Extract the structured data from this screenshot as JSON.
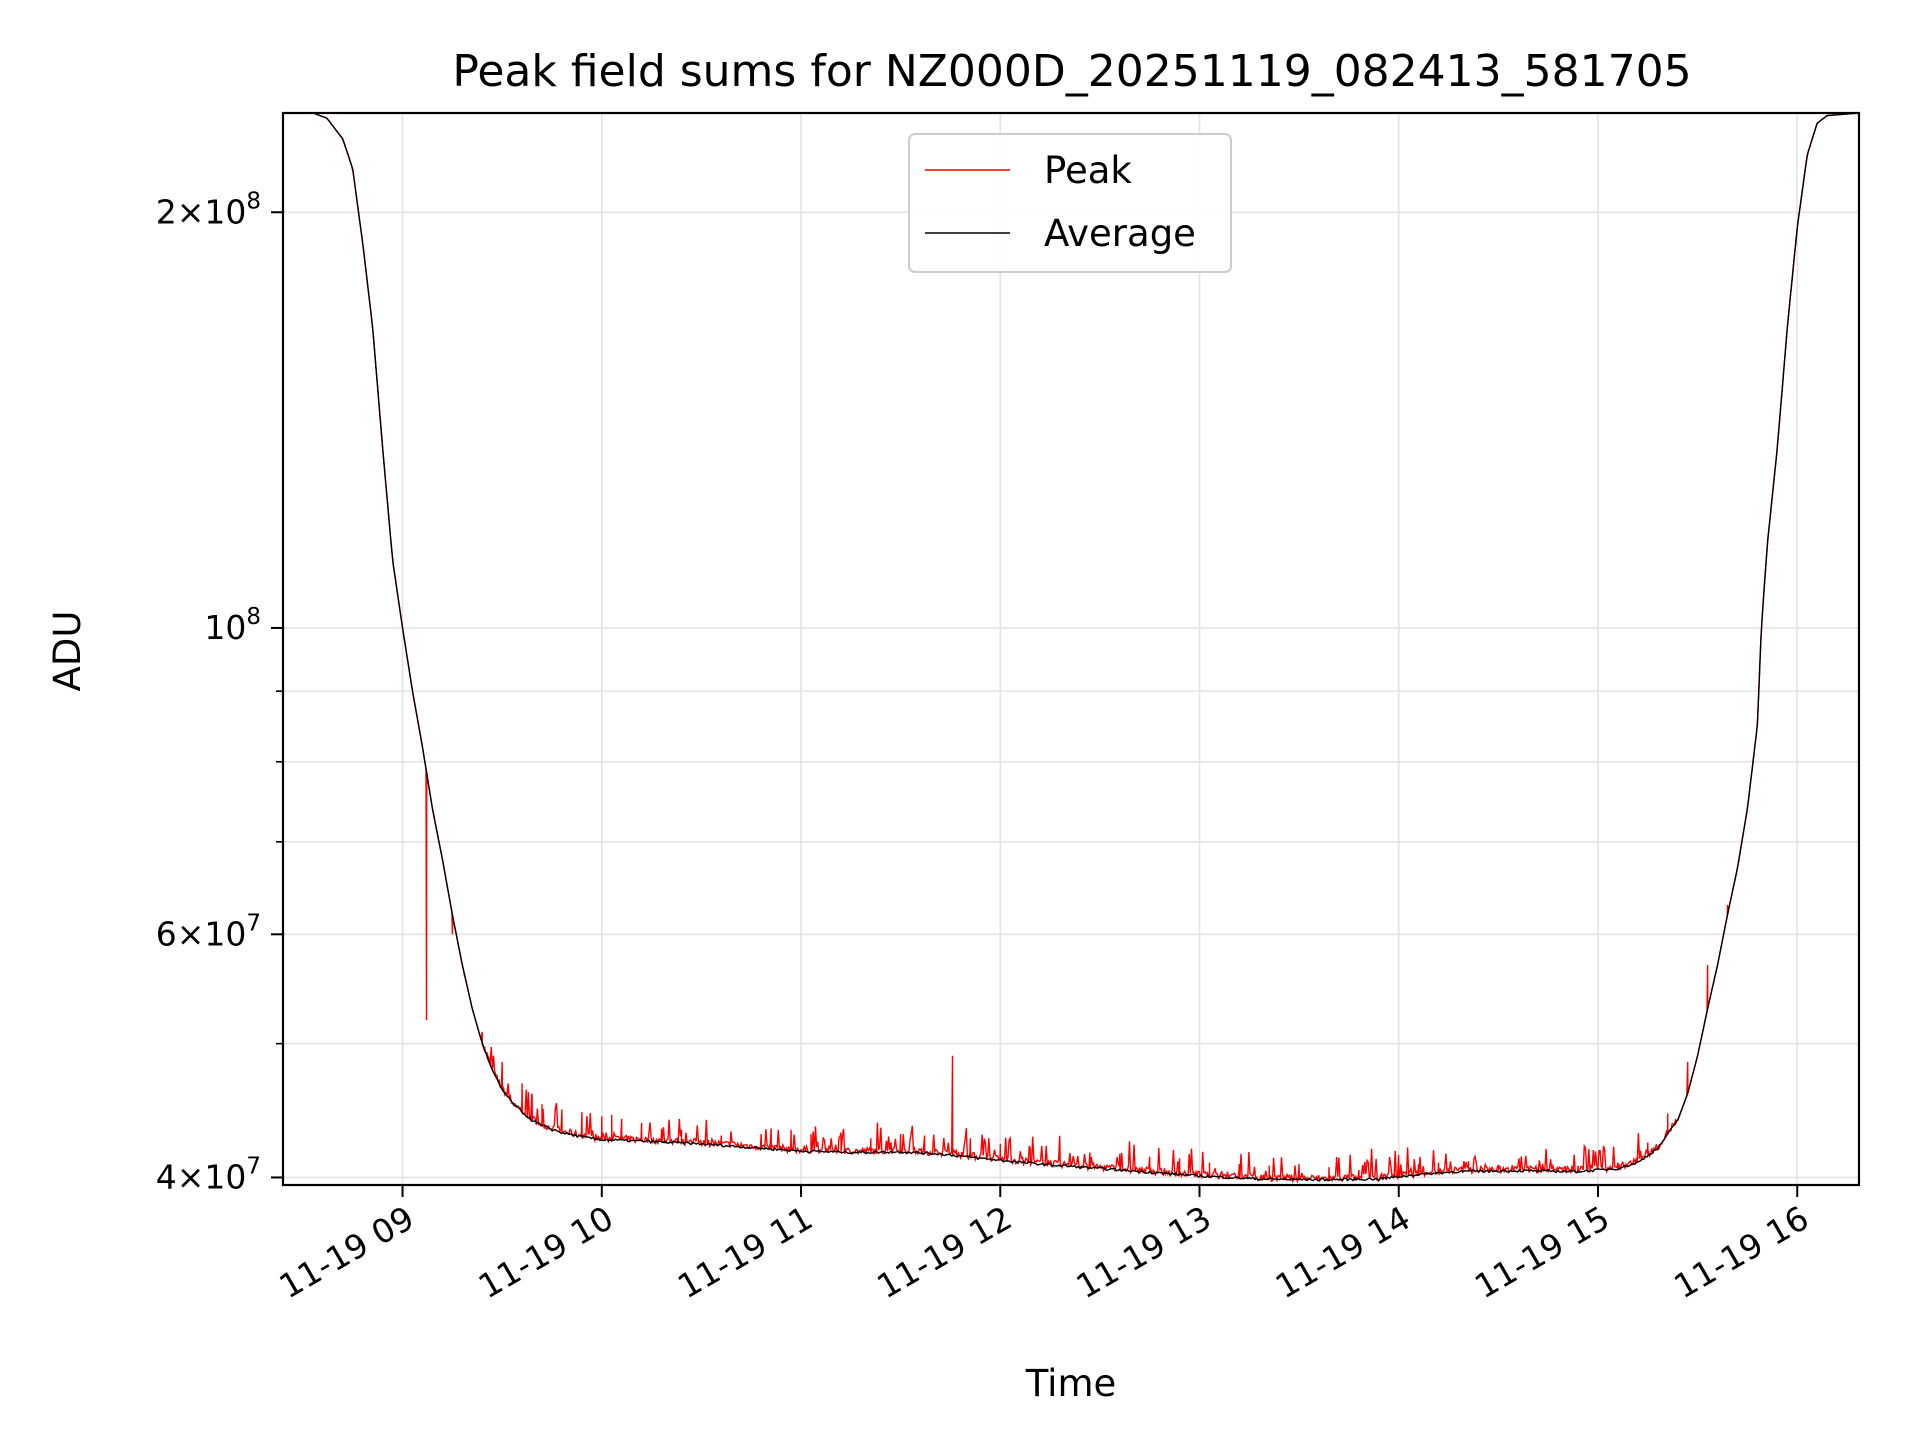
{
  "chart_data": {
    "type": "line",
    "title": "Peak field sums for NZ000D_20251119_082413_581705",
    "xlabel": "Time",
    "ylabel": "ADU",
    "y_scale": "log",
    "ylim": [
      39500000,
      236000000
    ],
    "xlim_hours": [
      8.4,
      16.31
    ],
    "grid": true,
    "legend_position": "upper center",
    "x_ticks": [
      {
        "value": 9,
        "label": "11-19 09"
      },
      {
        "value": 10,
        "label": "11-19 10"
      },
      {
        "value": 11,
        "label": "11-19 11"
      },
      {
        "value": 12,
        "label": "11-19 12"
      },
      {
        "value": 13,
        "label": "11-19 13"
      },
      {
        "value": 14,
        "label": "11-19 14"
      },
      {
        "value": 15,
        "label": "11-19 15"
      },
      {
        "value": 16,
        "label": "11-19 16"
      }
    ],
    "y_ticks": [
      {
        "value": 40000000,
        "base": "4",
        "exp": "7"
      },
      {
        "value": 60000000,
        "base": "6",
        "exp": "7"
      },
      {
        "value": 100000000,
        "base": "",
        "exp": "8"
      },
      {
        "value": 200000000,
        "base": "2",
        "exp": "8"
      }
    ],
    "y_minor_ticks": [
      50000000,
      70000000,
      80000000,
      90000000
    ],
    "series": [
      {
        "name": "Average",
        "color": "#000000",
        "points": [
          [
            8.4,
            236000000
          ],
          [
            8.55,
            236000000
          ],
          [
            8.62,
            234000000
          ],
          [
            8.7,
            226000000
          ],
          [
            8.75,
            215000000
          ],
          [
            8.8,
            190000000
          ],
          [
            8.85,
            165000000
          ],
          [
            8.9,
            135000000
          ],
          [
            8.95,
            112000000
          ],
          [
            9.0,
            100000000
          ],
          [
            9.05,
            90000000
          ],
          [
            9.1,
            82000000
          ],
          [
            9.15,
            74000000
          ],
          [
            9.2,
            68000000
          ],
          [
            9.25,
            62000000
          ],
          [
            9.3,
            57000000
          ],
          [
            9.35,
            53000000
          ],
          [
            9.4,
            50000000
          ],
          [
            9.45,
            47800000
          ],
          [
            9.5,
            46300000
          ],
          [
            9.55,
            45300000
          ],
          [
            9.6,
            44600000
          ],
          [
            9.65,
            44000000
          ],
          [
            9.7,
            43600000
          ],
          [
            9.8,
            43100000
          ],
          [
            9.9,
            42800000
          ],
          [
            10.0,
            42600000
          ],
          [
            10.2,
            42500000
          ],
          [
            10.5,
            42300000
          ],
          [
            10.8,
            42000000
          ],
          [
            11.0,
            41800000
          ],
          [
            11.3,
            41700000
          ],
          [
            11.5,
            41750000
          ],
          [
            11.7,
            41600000
          ],
          [
            11.9,
            41300000
          ],
          [
            12.2,
            40900000
          ],
          [
            12.5,
            40600000
          ],
          [
            12.8,
            40300000
          ],
          [
            13.0,
            40100000
          ],
          [
            13.3,
            39900000
          ],
          [
            13.6,
            39850000
          ],
          [
            13.9,
            39900000
          ],
          [
            14.1,
            40200000
          ],
          [
            14.3,
            40400000
          ],
          [
            14.6,
            40450000
          ],
          [
            14.9,
            40400000
          ],
          [
            15.1,
            40600000
          ],
          [
            15.2,
            41000000
          ],
          [
            15.3,
            42000000
          ],
          [
            15.4,
            44000000
          ],
          [
            15.45,
            46000000
          ],
          [
            15.5,
            49000000
          ],
          [
            15.55,
            53000000
          ],
          [
            15.6,
            57000000
          ],
          [
            15.65,
            62000000
          ],
          [
            15.7,
            67000000
          ],
          [
            15.75,
            74000000
          ],
          [
            15.8,
            85000000
          ],
          [
            15.82,
            100000000
          ],
          [
            15.85,
            115000000
          ],
          [
            15.9,
            135000000
          ],
          [
            15.95,
            165000000
          ],
          [
            16.0,
            195000000
          ],
          [
            16.05,
            220000000
          ],
          [
            16.1,
            232000000
          ],
          [
            16.15,
            235000000
          ],
          [
            16.31,
            236000000
          ]
        ]
      },
      {
        "name": "Peak",
        "color": "#ff0000",
        "spikes": [
          [
            9.12,
            52000000
          ],
          [
            9.25,
            60000000
          ],
          [
            9.31,
            56000000
          ],
          [
            9.4,
            51000000
          ],
          [
            9.5,
            48500000
          ],
          [
            9.6,
            46800000
          ],
          [
            9.65,
            45800000
          ],
          [
            9.7,
            45200000
          ],
          [
            9.8,
            44800000
          ],
          [
            9.9,
            44600000
          ],
          [
            10.0,
            44300000
          ],
          [
            10.05,
            44400000
          ],
          [
            10.1,
            44100000
          ],
          [
            10.2,
            43800000
          ],
          [
            10.3,
            43400000
          ],
          [
            10.4,
            43300000
          ],
          [
            10.6,
            42900000
          ],
          [
            10.8,
            43000000
          ],
          [
            10.85,
            43400000
          ],
          [
            10.95,
            43300000
          ],
          [
            11.05,
            43000000
          ],
          [
            11.2,
            43100000
          ],
          [
            11.35,
            42700000
          ],
          [
            11.5,
            43000000
          ],
          [
            11.62,
            42900000
          ],
          [
            11.76,
            49000000
          ],
          [
            11.85,
            42700000
          ],
          [
            12.0,
            42300000
          ],
          [
            12.15,
            42000000
          ],
          [
            12.3,
            41900000
          ],
          [
            12.45,
            41700000
          ],
          [
            12.6,
            41600000
          ],
          [
            12.75,
            41400000
          ],
          [
            12.9,
            41300000
          ],
          [
            13.05,
            41000000
          ],
          [
            13.2,
            40900000
          ],
          [
            13.35,
            40800000
          ],
          [
            13.5,
            40900000
          ],
          [
            13.65,
            40700000
          ],
          [
            13.8,
            40500000
          ],
          [
            14.0,
            40700000
          ],
          [
            14.1,
            40900000
          ],
          [
            14.2,
            41000000
          ],
          [
            14.35,
            41100000
          ],
          [
            14.5,
            40800000
          ],
          [
            14.7,
            40700000
          ],
          [
            14.9,
            40800000
          ],
          [
            15.1,
            41000000
          ],
          [
            15.25,
            42400000
          ],
          [
            15.35,
            44500000
          ],
          [
            15.45,
            48500000
          ],
          [
            15.55,
            57000000
          ],
          [
            15.65,
            63000000
          ]
        ]
      }
    ]
  }
}
